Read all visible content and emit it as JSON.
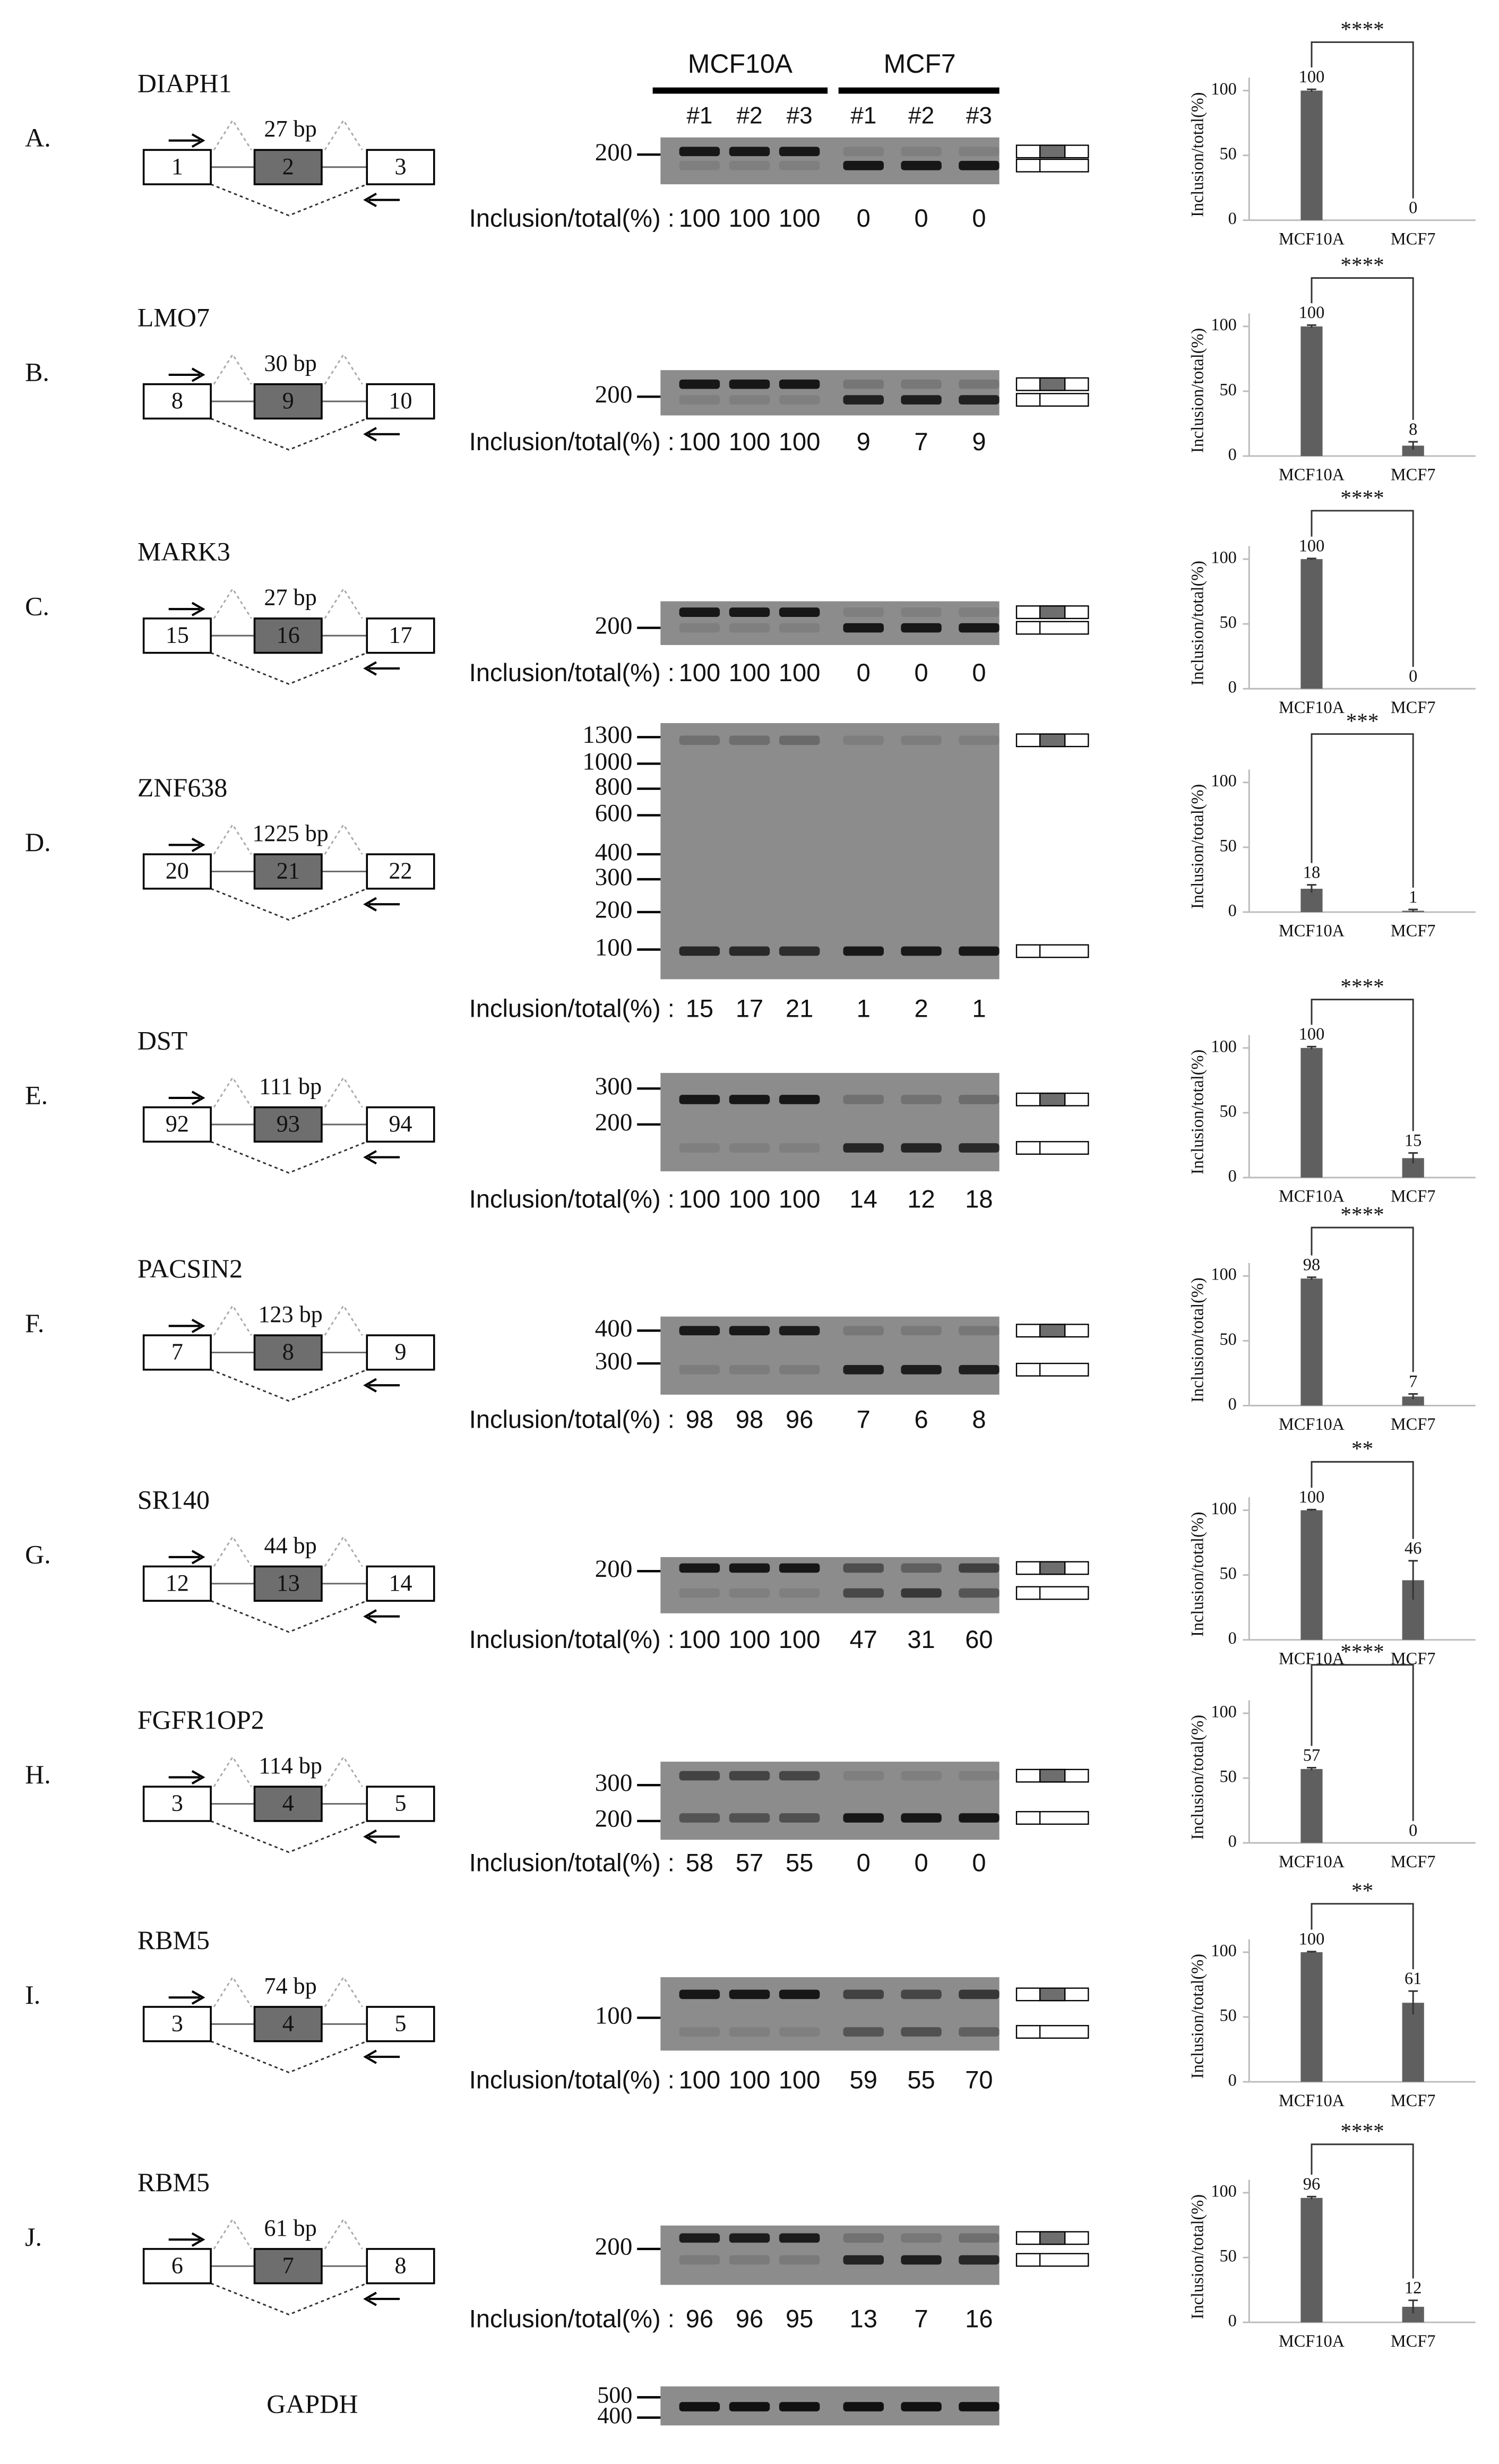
{
  "header": {
    "groups": [
      "MCF10A",
      "MCF7"
    ],
    "lanes": [
      "#1",
      "#2",
      "#3"
    ]
  },
  "inclusion_label": "Inclusion/total(%) :",
  "panels": [
    {
      "label": "A.",
      "gene": "DIAPH1",
      "exons": [
        "1",
        "2",
        "3"
      ],
      "insert": "27 bp",
      "markers": [
        "200"
      ],
      "inclusion": [
        100,
        100,
        100,
        0,
        0,
        0
      ]
    },
    {
      "label": "B.",
      "gene": "LMO7",
      "exons": [
        "8",
        "9",
        "10"
      ],
      "insert": "30 bp",
      "markers": [
        "200"
      ],
      "inclusion": [
        100,
        100,
        100,
        9,
        7,
        9
      ]
    },
    {
      "label": "C.",
      "gene": "MARK3",
      "exons": [
        "15",
        "16",
        "17"
      ],
      "insert": "27 bp",
      "markers": [
        "200"
      ],
      "inclusion": [
        100,
        100,
        100,
        0,
        0,
        0
      ]
    },
    {
      "label": "D.",
      "gene": "ZNF638",
      "exons": [
        "20",
        "21",
        "22"
      ],
      "insert": "1225 bp",
      "markers": [
        "1300",
        "1000",
        "800",
        "600",
        "400",
        "300",
        "200",
        "100"
      ],
      "inclusion": [
        15,
        17,
        21,
        1,
        2,
        1
      ]
    },
    {
      "label": "E.",
      "gene": "DST",
      "exons": [
        "92",
        "93",
        "94"
      ],
      "insert": "111 bp",
      "markers": [
        "300",
        "200"
      ],
      "inclusion": [
        100,
        100,
        100,
        14,
        12,
        18
      ]
    },
    {
      "label": "F.",
      "gene": "PACSIN2",
      "exons": [
        "7",
        "8",
        "9"
      ],
      "insert": "123 bp",
      "markers": [
        "400",
        "300"
      ],
      "inclusion": [
        98,
        98,
        96,
        7,
        6,
        8
      ]
    },
    {
      "label": "G.",
      "gene": "SR140",
      "exons": [
        "12",
        "13",
        "14"
      ],
      "insert": "44 bp",
      "markers": [
        "200"
      ],
      "inclusion": [
        100,
        100,
        100,
        47,
        31,
        60
      ]
    },
    {
      "label": "H.",
      "gene": "FGFR1OP2",
      "exons": [
        "3",
        "4",
        "5"
      ],
      "insert": "114 bp",
      "markers": [
        "300",
        "200"
      ],
      "inclusion": [
        58,
        57,
        55,
        0,
        0,
        0
      ]
    },
    {
      "label": "I.",
      "gene": "RBM5",
      "exons": [
        "3",
        "4",
        "5"
      ],
      "insert": "74 bp",
      "markers": [
        "100"
      ],
      "inclusion": [
        100,
        100,
        100,
        59,
        55,
        70
      ]
    },
    {
      "label": "J.",
      "gene": "RBM5",
      "exons": [
        "6",
        "7",
        "8"
      ],
      "insert": "61 bp",
      "markers": [
        "200"
      ],
      "inclusion": [
        96,
        96,
        95,
        13,
        7,
        16
      ]
    }
  ],
  "control": {
    "gene": "GAPDH",
    "markers": [
      "500",
      "400"
    ]
  },
  "chart_data": [
    {
      "type": "bar",
      "ylabel": "Inclusion/total(%)",
      "categories": [
        "MCF10A",
        "MCF7"
      ],
      "values": [
        100,
        0
      ],
      "errors": [
        1,
        0
      ],
      "significance": "****",
      "color": "#5f5f5f",
      "ylim": [
        0,
        110
      ],
      "yticks": [
        0,
        50,
        100
      ]
    },
    {
      "type": "bar",
      "ylabel": "Inclusion/total(%)",
      "categories": [
        "MCF10A",
        "MCF7"
      ],
      "values": [
        100,
        8
      ],
      "errors": [
        1,
        3
      ],
      "significance": "****",
      "color": "#5f5f5f",
      "ylim": [
        0,
        110
      ],
      "yticks": [
        0,
        50,
        100
      ]
    },
    {
      "type": "bar",
      "ylabel": "Inclusion/total(%)",
      "categories": [
        "MCF10A",
        "MCF7"
      ],
      "values": [
        100,
        0
      ],
      "errors": [
        0.5,
        0
      ],
      "significance": "****",
      "color": "#5f5f5f",
      "ylim": [
        0,
        110
      ],
      "yticks": [
        0,
        50,
        100
      ]
    },
    {
      "type": "bar",
      "ylabel": "Inclusion/total(%)",
      "categories": [
        "MCF10A",
        "MCF7"
      ],
      "values": [
        18,
        1
      ],
      "errors": [
        3,
        1
      ],
      "significance": "***",
      "color": "#5f5f5f",
      "ylim": [
        0,
        110
      ],
      "yticks": [
        0,
        50,
        100
      ]
    },
    {
      "type": "bar",
      "ylabel": "Inclusion/total(%)",
      "categories": [
        "MCF10A",
        "MCF7"
      ],
      "values": [
        100,
        15
      ],
      "errors": [
        1,
        4
      ],
      "significance": "****",
      "color": "#5f5f5f",
      "ylim": [
        0,
        110
      ],
      "yticks": [
        0,
        50,
        100
      ]
    },
    {
      "type": "bar",
      "ylabel": "Inclusion/total(%)",
      "categories": [
        "MCF10A",
        "MCF7"
      ],
      "values": [
        98,
        7
      ],
      "errors": [
        1,
        2
      ],
      "significance": "****",
      "color": "#5f5f5f",
      "ylim": [
        0,
        110
      ],
      "yticks": [
        0,
        50,
        100
      ]
    },
    {
      "type": "bar",
      "ylabel": "Inclusion/total(%)",
      "categories": [
        "MCF10A",
        "MCF7"
      ],
      "values": [
        100,
        46
      ],
      "errors": [
        0.5,
        15
      ],
      "significance": "**",
      "color": "#5f5f5f",
      "ylim": [
        0,
        110
      ],
      "yticks": [
        0,
        50,
        100
      ]
    },
    {
      "type": "bar",
      "ylabel": "Inclusion/total(%)",
      "categories": [
        "MCF10A",
        "MCF7"
      ],
      "values": [
        57,
        0
      ],
      "errors": [
        1,
        0
      ],
      "significance": "****",
      "color": "#5f5f5f",
      "ylim": [
        0,
        110
      ],
      "yticks": [
        0,
        50,
        100
      ]
    },
    {
      "type": "bar",
      "ylabel": "Inclusion/total(%)",
      "categories": [
        "MCF10A",
        "MCF7"
      ],
      "values": [
        100,
        61
      ],
      "errors": [
        0.5,
        9
      ],
      "significance": "**",
      "color": "#5f5f5f",
      "ylim": [
        0,
        110
      ],
      "yticks": [
        0,
        50,
        100
      ]
    },
    {
      "type": "bar",
      "ylabel": "Inclusion/total(%)",
      "categories": [
        "MCF10A",
        "MCF7"
      ],
      "values": [
        96,
        12
      ],
      "errors": [
        1,
        5
      ],
      "significance": "****",
      "color": "#5f5f5f",
      "ylim": [
        0,
        110
      ],
      "yticks": [
        0,
        50,
        100
      ]
    }
  ]
}
